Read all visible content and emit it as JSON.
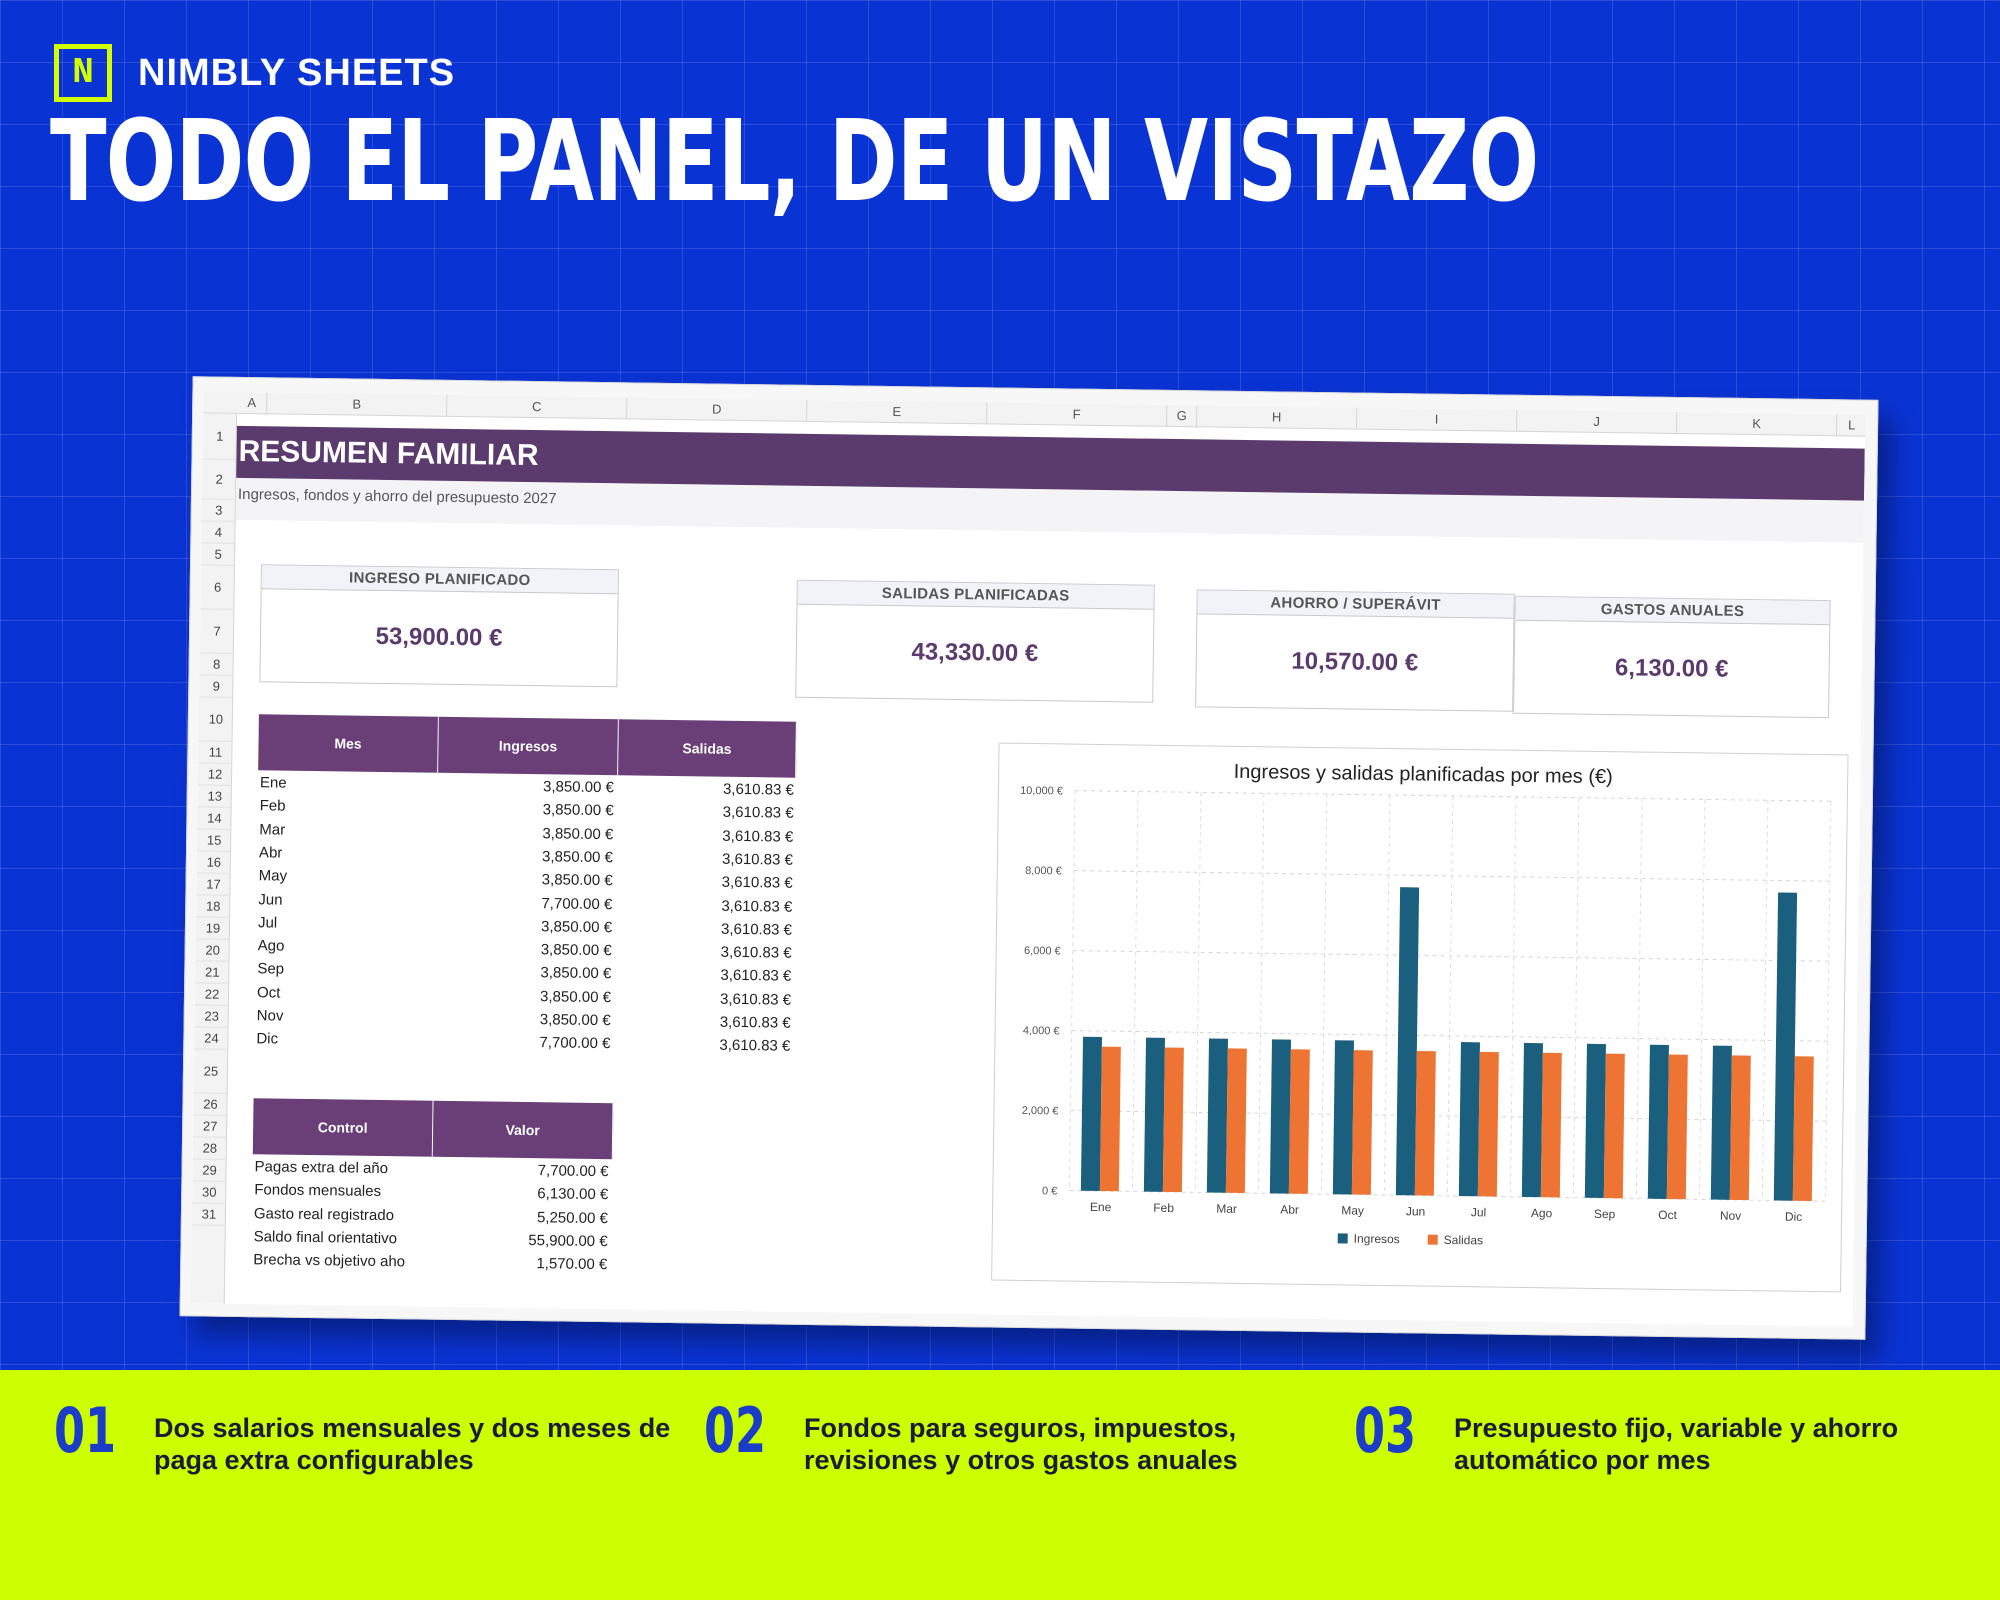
{
  "brand": {
    "logo_letter": "N",
    "name": "NIMBLY SHEETS"
  },
  "headline": "TODO EL PANEL, DE UN VISTAZO",
  "sheet": {
    "columns": [
      "A",
      "B",
      "C",
      "D",
      "E",
      "F",
      "G",
      "H",
      "I",
      "J",
      "K",
      "L"
    ],
    "rows": [
      "1",
      "2",
      "3",
      "4",
      "5",
      "6",
      "7",
      "8",
      "9",
      "10",
      "11",
      "12",
      "13",
      "14",
      "15",
      "16",
      "17",
      "18",
      "19",
      "20",
      "21",
      "22",
      "23",
      "24",
      "25",
      "26",
      "27",
      "28",
      "29",
      "30",
      "31"
    ],
    "title": "RESUMEN FAMILIAR",
    "subtitle": "Ingresos, fondos y ahorro del presupuesto 2027",
    "kpis": [
      {
        "label": "INGRESO PLANIFICADO",
        "value": "53,900.00 €"
      },
      {
        "label": "SALIDAS PLANIFICADAS",
        "value": "43,330.00 €"
      },
      {
        "label": "AHORRO / SUPERÁVIT",
        "value": "10,570.00 €"
      },
      {
        "label": "GASTOS ANUALES",
        "value": "6,130.00 €"
      }
    ],
    "monthly_table": {
      "headers": [
        "Mes",
        "Ingresos",
        "Salidas"
      ],
      "rows": [
        [
          "Ene",
          "3,850.00 €",
          "3,610.83 €"
        ],
        [
          "Feb",
          "3,850.00 €",
          "3,610.83 €"
        ],
        [
          "Mar",
          "3,850.00 €",
          "3,610.83 €"
        ],
        [
          "Abr",
          "3,850.00 €",
          "3,610.83 €"
        ],
        [
          "May",
          "3,850.00 €",
          "3,610.83 €"
        ],
        [
          "Jun",
          "7,700.00 €",
          "3,610.83 €"
        ],
        [
          "Jul",
          "3,850.00 €",
          "3,610.83 €"
        ],
        [
          "Ago",
          "3,850.00 €",
          "3,610.83 €"
        ],
        [
          "Sep",
          "3,850.00 €",
          "3,610.83 €"
        ],
        [
          "Oct",
          "3,850.00 €",
          "3,610.83 €"
        ],
        [
          "Nov",
          "3,850.00 €",
          "3,610.83 €"
        ],
        [
          "Dic",
          "7,700.00 €",
          "3,610.83 €"
        ]
      ]
    },
    "control_table": {
      "headers": [
        "Control",
        "Valor"
      ],
      "rows": [
        [
          "Pagas extra del año",
          "7,700.00 €"
        ],
        [
          "Fondos mensuales",
          "6,130.00 €"
        ],
        [
          "Gasto real registrado",
          "5,250.00 €"
        ],
        [
          "Saldo final orientativo",
          "55,900.00 €"
        ],
        [
          "Brecha vs objetivo aho",
          "1,570.00 €"
        ]
      ]
    }
  },
  "chart_data": {
    "type": "bar",
    "title": "Ingresos y salidas planificadas por mes (€)",
    "categories": [
      "Ene",
      "Feb",
      "Mar",
      "Abr",
      "May",
      "Jun",
      "Jul",
      "Ago",
      "Sep",
      "Oct",
      "Nov",
      "Dic"
    ],
    "series": [
      {
        "name": "Ingresos",
        "color": "#1b5f7e",
        "values": [
          3850,
          3850,
          3850,
          3850,
          3850,
          7700,
          3850,
          3850,
          3850,
          3850,
          3850,
          7700
        ]
      },
      {
        "name": "Salidas",
        "color": "#ee7433",
        "values": [
          3610.83,
          3610.83,
          3610.83,
          3610.83,
          3610.83,
          3610.83,
          3610.83,
          3610.83,
          3610.83,
          3610.83,
          3610.83,
          3610.83
        ]
      }
    ],
    "ylim": [
      0,
      10000
    ],
    "yticks": [
      0,
      2000,
      4000,
      6000,
      8000,
      10000
    ],
    "ytick_labels": [
      "0 €",
      "2,000 €",
      "4,000 €",
      "6,000 €",
      "8,000 €",
      "10,000 €"
    ],
    "grid": true,
    "legend": "bottom"
  },
  "features": [
    {
      "num": "01",
      "text": "Dos salarios mensuales y dos meses de paga extra configurables"
    },
    {
      "num": "02",
      "text": "Fondos para seguros, impuestos, revisiones y otros gastos anuales"
    },
    {
      "num": "03",
      "text": "Presupuesto fijo, variable y ahorro automático por mes"
    }
  ],
  "colors": {
    "background": "#0a33d4",
    "accent": "#ccff00",
    "header_purple": "#5b3a6e"
  }
}
